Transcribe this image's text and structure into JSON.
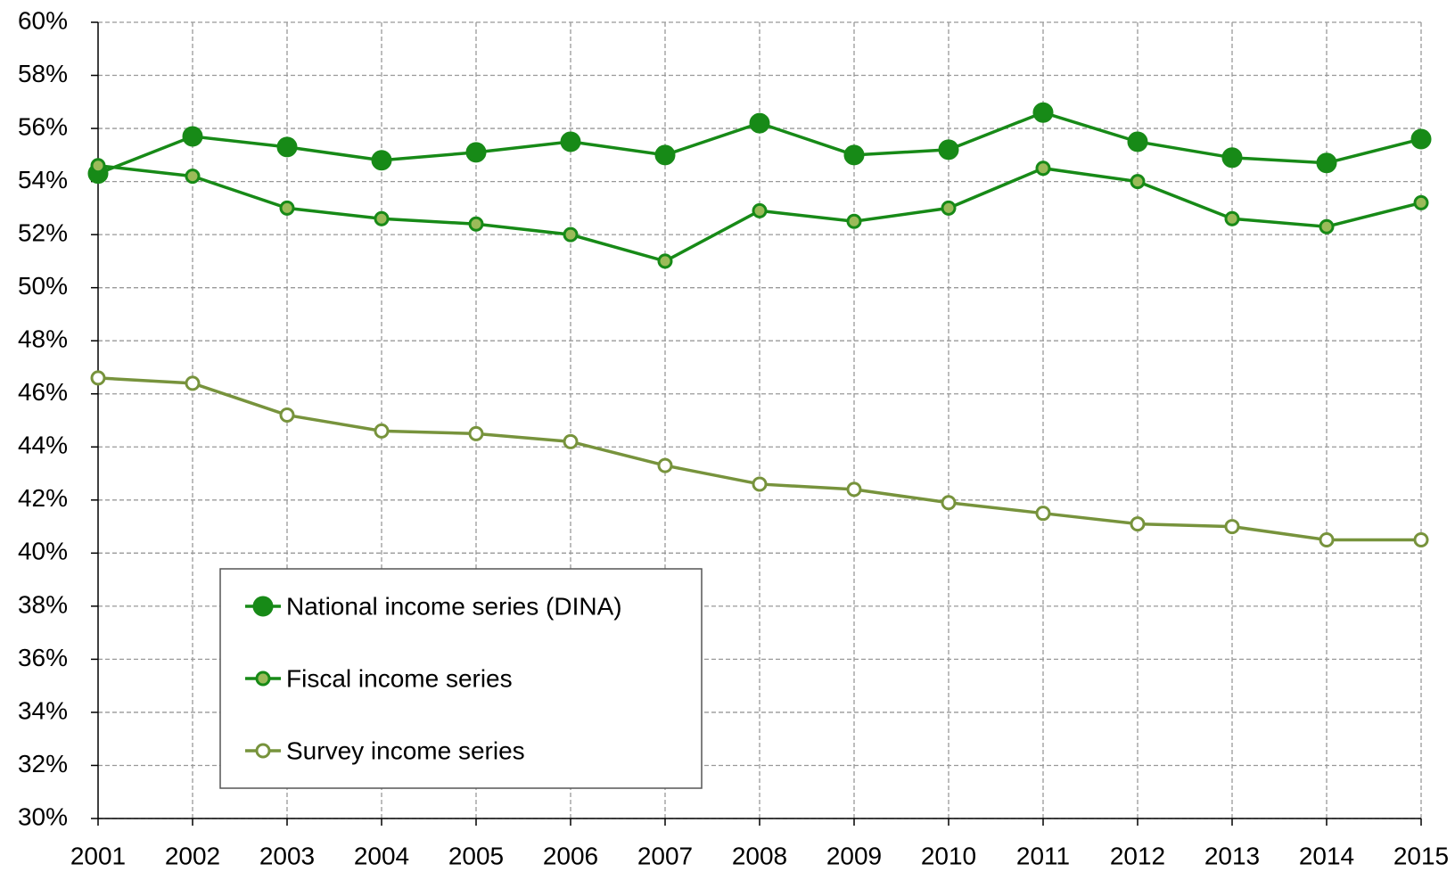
{
  "chart_data": {
    "type": "line",
    "categories": [
      "2001",
      "2002",
      "2003",
      "2004",
      "2005",
      "2006",
      "2007",
      "2008",
      "2009",
      "2010",
      "2011",
      "2012",
      "2013",
      "2014",
      "2015"
    ],
    "series": [
      {
        "name": "National income series (DINA)",
        "color": "#178a17",
        "marker_fill": "#178a17",
        "values": [
          54.3,
          55.7,
          55.3,
          54.8,
          55.1,
          55.5,
          55.0,
          56.2,
          55.0,
          55.2,
          56.6,
          55.5,
          54.9,
          54.7,
          55.6
        ]
      },
      {
        "name": "Fiscal income series",
        "color": "#178a17",
        "marker_fill": "#9bbb59",
        "values": [
          54.6,
          54.2,
          53.0,
          52.6,
          52.4,
          52.0,
          51.0,
          52.9,
          52.5,
          53.0,
          54.5,
          54.0,
          52.6,
          52.3,
          53.2
        ]
      },
      {
        "name": "Survey income series",
        "color": "#77933c",
        "marker_fill": "#ffffff",
        "values": [
          46.6,
          46.4,
          45.2,
          44.6,
          44.5,
          44.2,
          43.3,
          42.6,
          42.4,
          41.9,
          41.5,
          41.1,
          41.0,
          40.5,
          40.5
        ]
      }
    ],
    "ylim": [
      30,
      60
    ],
    "yticks": [
      {
        "value": 30,
        "label": "30%"
      },
      {
        "value": 32,
        "label": "32%"
      },
      {
        "value": 34,
        "label": "34%"
      },
      {
        "value": 36,
        "label": "36%"
      },
      {
        "value": 38,
        "label": "38%"
      },
      {
        "value": 40,
        "label": "40%"
      },
      {
        "value": 42,
        "label": "42%"
      },
      {
        "value": 44,
        "label": "44%"
      },
      {
        "value": 46,
        "label": "46%"
      },
      {
        "value": 48,
        "label": "48%"
      },
      {
        "value": 50,
        "label": "50%"
      },
      {
        "value": 52,
        "label": "52%"
      },
      {
        "value": 54,
        "label": "54%"
      },
      {
        "value": 56,
        "label": "56%"
      },
      {
        "value": 58,
        "label": "58%"
      },
      {
        "value": 60,
        "label": "60%"
      }
    ],
    "grid": true,
    "legend": "lower left"
  }
}
